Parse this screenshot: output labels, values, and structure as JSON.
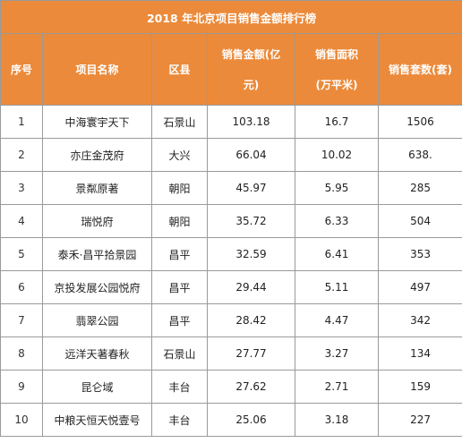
{
  "table": {
    "title": "2018 年北京项目销售金额排行榜",
    "headers": {
      "rank": "序号",
      "project": "项目名称",
      "district": "区县",
      "amount_line1": "销售金额(亿",
      "amount_line2": "元)",
      "area_line1": "销售面积",
      "area_line2": "(万平米)",
      "units": "销售套数(套)"
    },
    "rows": [
      {
        "rank": "1",
        "project": "中海寰宇天下",
        "district": "石景山",
        "amount": "103.18",
        "area": "16.7",
        "units": "1506"
      },
      {
        "rank": "2",
        "project": "亦庄金茂府",
        "district": "大兴",
        "amount": "66.04",
        "area": "10.02",
        "units": "638."
      },
      {
        "rank": "3",
        "project": "景粼原著",
        "district": "朝阳",
        "amount": "45.97",
        "area": "5.95",
        "units": "285"
      },
      {
        "rank": "4",
        "project": "瑞悦府",
        "district": "朝阳",
        "amount": "35.72",
        "area": "6.33",
        "units": "504"
      },
      {
        "rank": "5",
        "project": "泰禾·昌平拾景园",
        "district": "昌平",
        "amount": "32.59",
        "area": "6.41",
        "units": "353"
      },
      {
        "rank": "6",
        "project": "京投发展公园悦府",
        "district": "昌平",
        "amount": "29.44",
        "area": "5.11",
        "units": "497"
      },
      {
        "rank": "7",
        "project": "翡翠公园",
        "district": "昌平",
        "amount": "28.42",
        "area": "4.47",
        "units": "342"
      },
      {
        "rank": "8",
        "project": "远洋天著春秋",
        "district": "石景山",
        "amount": "27.77",
        "area": "3.27",
        "units": "134"
      },
      {
        "rank": "9",
        "project": "昆仑域",
        "district": "丰台",
        "amount": "27.62",
        "area": "2.71",
        "units": "159"
      },
      {
        "rank": "10",
        "project": "中粮天恒天悦壹号",
        "district": "丰台",
        "amount": "25.06",
        "area": "3.18",
        "units": "227"
      }
    ]
  },
  "colors": {
    "header_bg": "#eb8a3a",
    "header_text": "#ffffff",
    "border": "#9a9a9a"
  }
}
